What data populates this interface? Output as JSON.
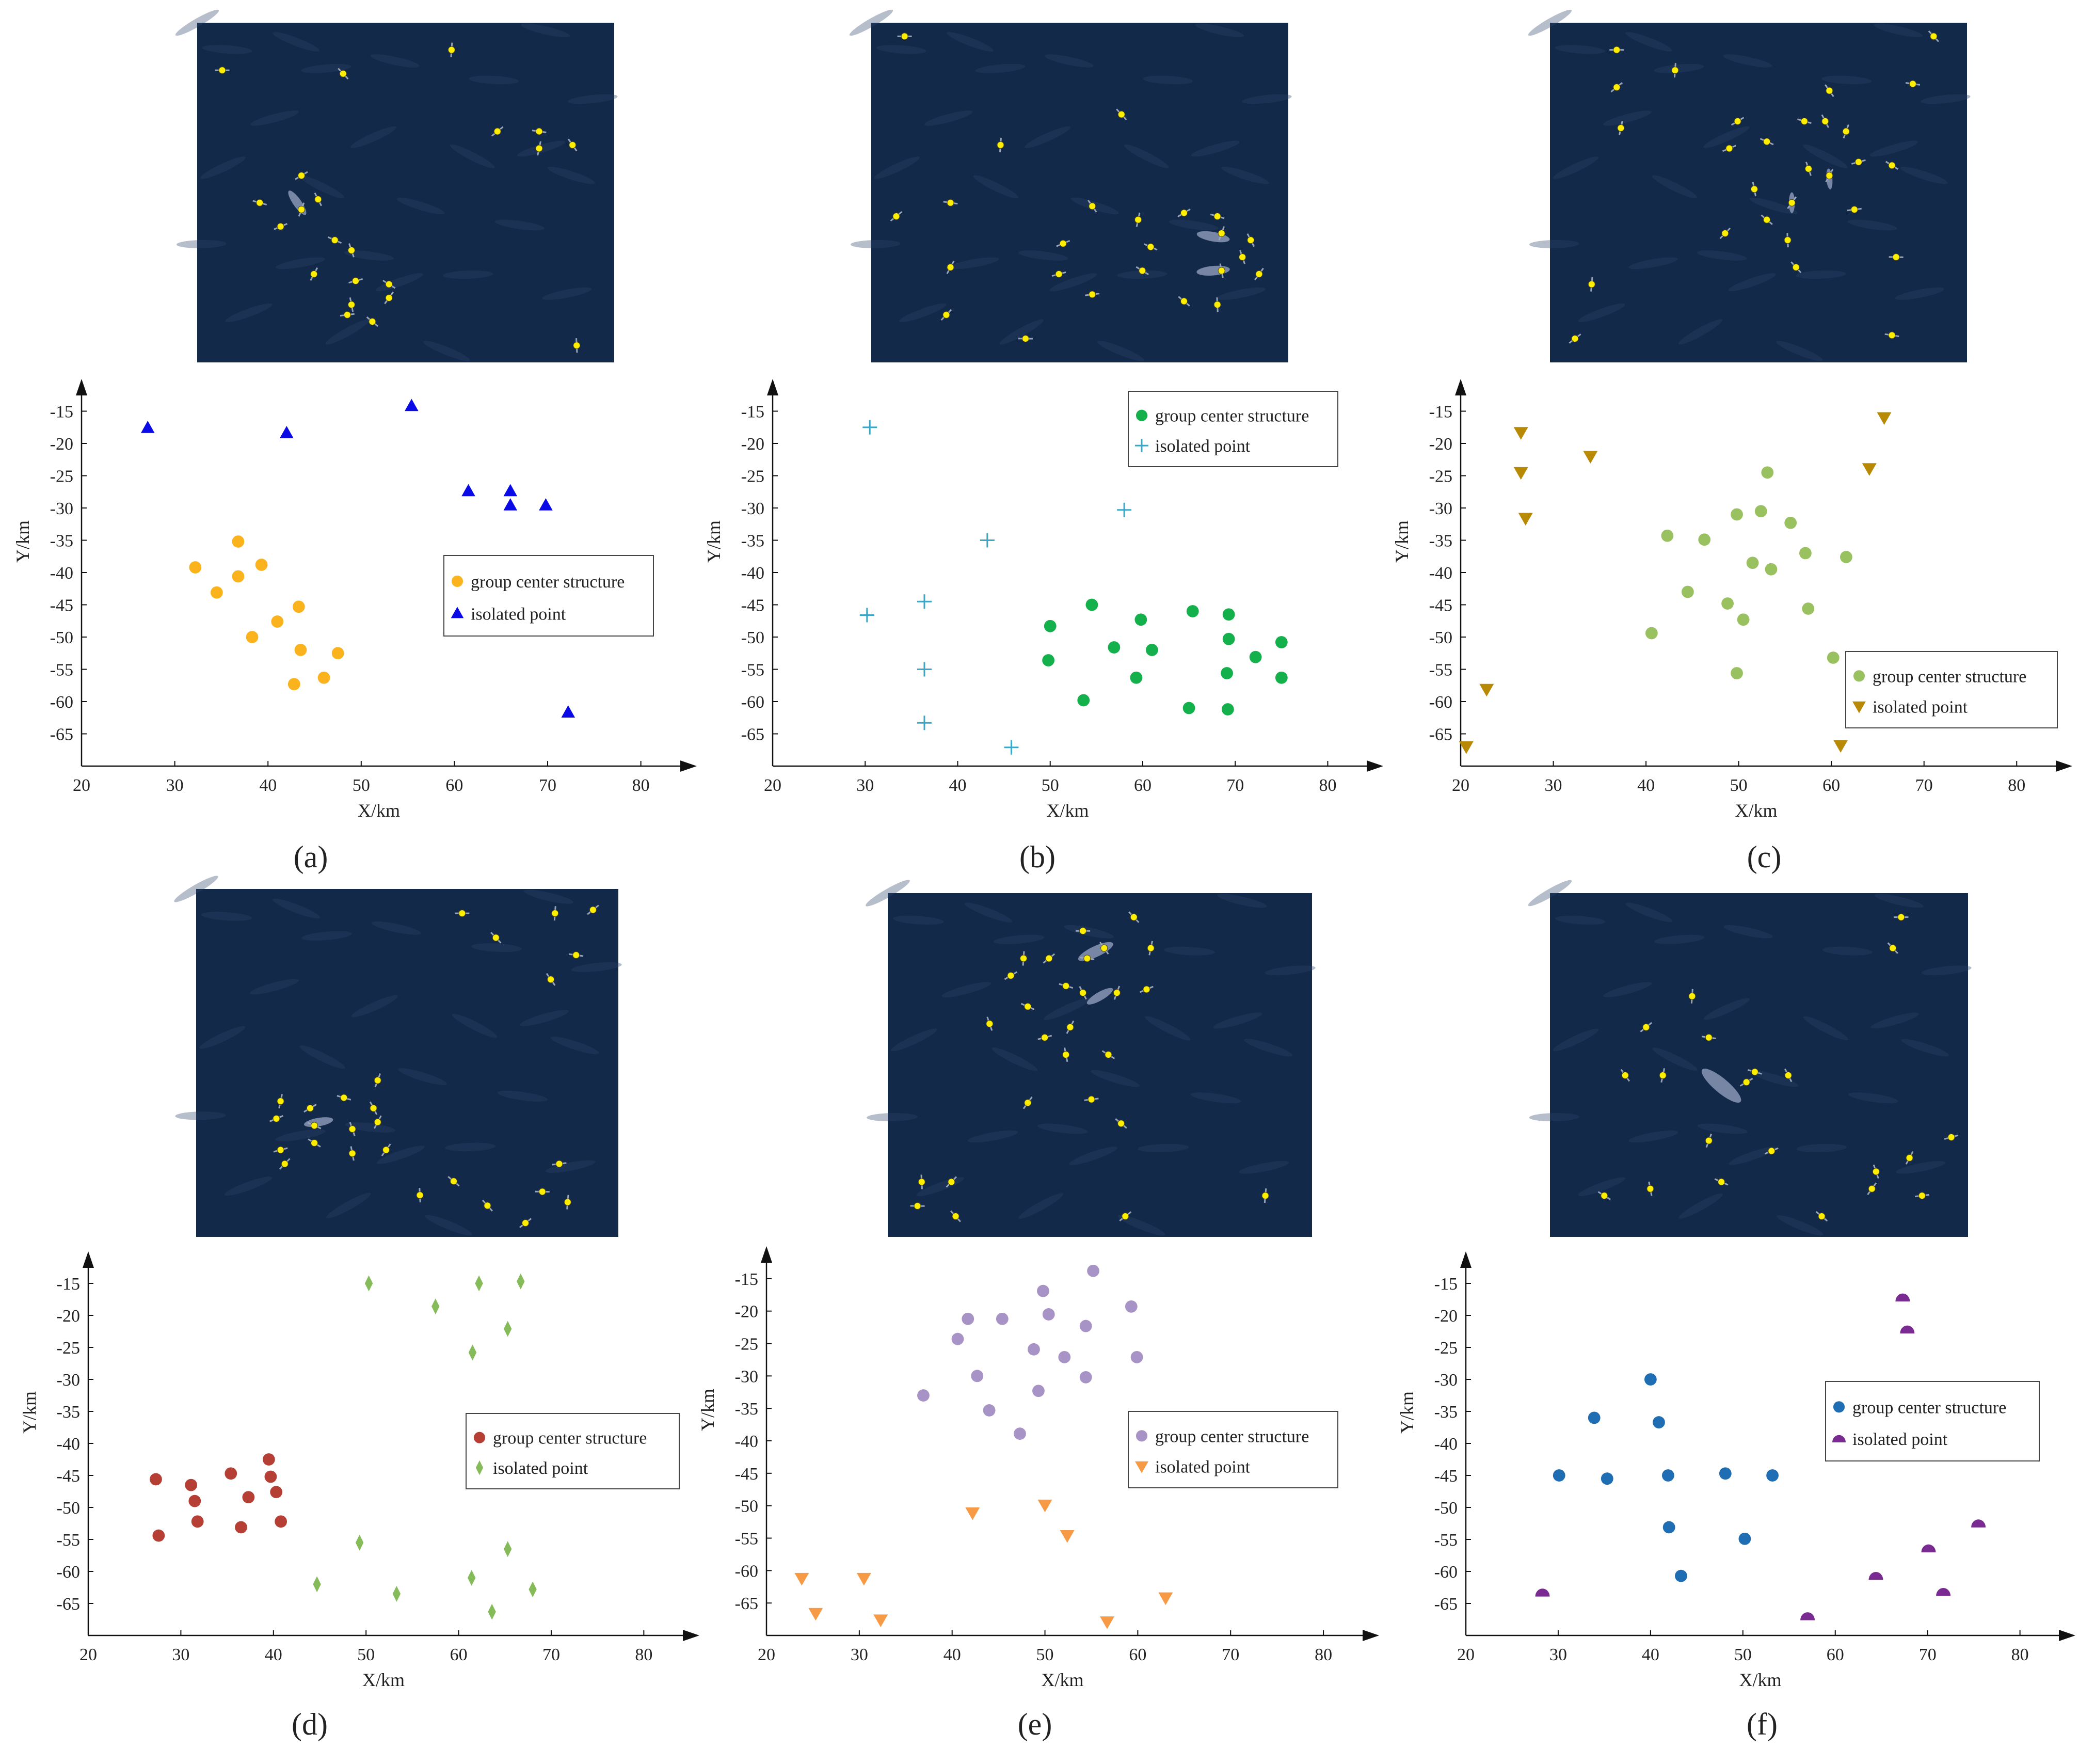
{
  "figure": {
    "panel_captions": [
      "(a)",
      "(b)",
      "(c)",
      "(d)",
      "(e)",
      "(f)"
    ]
  },
  "axes_common": {
    "xlabel": "X/km",
    "ylabel": "Y/km",
    "x_ticks": [
      20,
      30,
      40,
      50,
      60,
      70,
      80
    ],
    "y_ticks": [
      -15,
      -20,
      -25,
      -30,
      -35,
      -40,
      -45,
      -50,
      -55,
      -60,
      -65
    ],
    "xlim": [
      20,
      86
    ],
    "ylim": [
      -70,
      -10
    ]
  },
  "colors": {
    "image_background": "#13294a",
    "ship_point": "#ffee00",
    "ship_hull": "#8896b4"
  },
  "chart_data": [
    {
      "type": "scatter",
      "caption": "(a)",
      "legend_position": "center-right",
      "series": [
        {
          "name": "group center structure",
          "color": "#fbb31d",
          "marker": "circle",
          "points": [
            [
              36.8,
              -35.2
            ],
            [
              32.2,
              -39.2
            ],
            [
              39.3,
              -38.8
            ],
            [
              36.8,
              -40.6
            ],
            [
              34.5,
              -43.1
            ],
            [
              43.3,
              -45.3
            ],
            [
              41,
              -47.6
            ],
            [
              38.3,
              -50
            ],
            [
              43.5,
              -52
            ],
            [
              47.5,
              -52.5
            ],
            [
              46,
              -56.3
            ],
            [
              42.8,
              -57.3
            ]
          ]
        },
        {
          "name": "isolated point",
          "color": "#0a0ae6",
          "marker": "triangle",
          "points": [
            [
              27.1,
              -17.6
            ],
            [
              42,
              -18.4
            ],
            [
              55.4,
              -14.2
            ],
            [
              61.5,
              -27.4
            ],
            [
              66,
              -27.4
            ],
            [
              66,
              -29.6
            ],
            [
              69.8,
              -29.6
            ],
            [
              72.2,
              -61.7
            ]
          ]
        }
      ]
    },
    {
      "type": "scatter",
      "caption": "(b)",
      "legend_position": "top-right",
      "series": [
        {
          "name": "group center structure",
          "color": "#13b04b",
          "marker": "circle",
          "points": [
            [
              54.5,
              -45
            ],
            [
              50,
              -48.3
            ],
            [
              49.8,
              -53.6
            ],
            [
              59.8,
              -47.3
            ],
            [
              65.4,
              -46
            ],
            [
              69.3,
              -46.5
            ],
            [
              56.9,
              -51.6
            ],
            [
              61,
              -52
            ],
            [
              69.3,
              -50.3
            ],
            [
              75,
              -50.8
            ],
            [
              72.2,
              -53.1
            ],
            [
              59.3,
              -56.3
            ],
            [
              69.1,
              -55.6
            ],
            [
              75,
              -56.3
            ],
            [
              53.6,
              -59.8
            ],
            [
              65,
              -61
            ],
            [
              69.2,
              -61.2
            ]
          ]
        },
        {
          "name": "isolated point",
          "color": "#3ba7c6",
          "marker": "plus",
          "points": [
            [
              30.5,
              -17.5
            ],
            [
              58,
              -30.3
            ],
            [
              43.2,
              -35
            ],
            [
              36.4,
              -44.5
            ],
            [
              30.2,
              -46.6
            ],
            [
              36.4,
              -55
            ],
            [
              36.4,
              -63.3
            ],
            [
              45.8,
              -67.1
            ]
          ]
        }
      ]
    },
    {
      "type": "scatter",
      "caption": "(c)",
      "legend_position": "bottom-right",
      "series": [
        {
          "name": "group center structure",
          "color": "#99c160",
          "marker": "circle",
          "points": [
            [
              53.1,
              -24.5
            ],
            [
              49.8,
              -31
            ],
            [
              52.4,
              -30.5
            ],
            [
              55.6,
              -32.3
            ],
            [
              42.3,
              -34.3
            ],
            [
              46.3,
              -34.9
            ],
            [
              51.5,
              -38.5
            ],
            [
              53.5,
              -39.5
            ],
            [
              57.2,
              -37
            ],
            [
              61.6,
              -37.6
            ],
            [
              44.5,
              -43
            ],
            [
              48.8,
              -44.8
            ],
            [
              50.5,
              -47.3
            ],
            [
              57.5,
              -45.6
            ],
            [
              40.6,
              -49.4
            ],
            [
              60.2,
              -53.2
            ],
            [
              49.8,
              -55.6
            ]
          ]
        },
        {
          "name": "isolated point",
          "color": "#b88905",
          "marker": "triangle-down",
          "points": [
            [
              26.5,
              -18.3
            ],
            [
              26.5,
              -24.5
            ],
            [
              34,
              -22
            ],
            [
              65.7,
              -16
            ],
            [
              64.1,
              -23.9
            ],
            [
              27,
              -31.6
            ],
            [
              22.8,
              -58.1
            ],
            [
              20.6,
              -67
            ],
            [
              61,
              -66.8
            ]
          ]
        }
      ]
    },
    {
      "type": "scatter",
      "caption": "(d)",
      "legend_position": "center-right",
      "series": [
        {
          "name": "group center structure",
          "color": "#b63f35",
          "marker": "circle",
          "points": [
            [
              39.5,
              -42.5
            ],
            [
              35.4,
              -44.7
            ],
            [
              27.3,
              -45.6
            ],
            [
              31.1,
              -46.5
            ],
            [
              39.7,
              -45.2
            ],
            [
              31.5,
              -49
            ],
            [
              37.3,
              -48.4
            ],
            [
              40.3,
              -47.6
            ],
            [
              31.8,
              -52.2
            ],
            [
              36.5,
              -53.1
            ],
            [
              40.8,
              -52.2
            ],
            [
              27.6,
              -54.4
            ]
          ]
        },
        {
          "name": "isolated point",
          "color": "#86bb59",
          "marker": "diamond",
          "points": [
            [
              50.3,
              -15
            ],
            [
              62.2,
              -15
            ],
            [
              66.7,
              -14.7
            ],
            [
              57.5,
              -18.6
            ],
            [
              65.3,
              -22.1
            ],
            [
              61.5,
              -25.8
            ],
            [
              49.3,
              -55.5
            ],
            [
              65.3,
              -56.5
            ],
            [
              61.4,
              -61
            ],
            [
              44.7,
              -62
            ],
            [
              68,
              -62.8
            ],
            [
              53.3,
              -63.5
            ],
            [
              63.6,
              -66.3
            ]
          ]
        }
      ]
    },
    {
      "type": "scatter",
      "caption": "(e)",
      "legend_position": "center-right",
      "series": [
        {
          "name": "group center structure",
          "color": "#a893c6",
          "marker": "circle",
          "points": [
            [
              55.2,
              -13.8
            ],
            [
              49.8,
              -16.9
            ],
            [
              59.3,
              -19.3
            ],
            [
              50.4,
              -20.5
            ],
            [
              41.7,
              -21.2
            ],
            [
              45.4,
              -21.2
            ],
            [
              54.4,
              -22.3
            ],
            [
              40.6,
              -24.3
            ],
            [
              48.8,
              -25.9
            ],
            [
              52.1,
              -27.1
            ],
            [
              59.9,
              -27.1
            ],
            [
              42.7,
              -30
            ],
            [
              54.4,
              -30.2
            ],
            [
              49.3,
              -32.3
            ],
            [
              36.9,
              -33
            ],
            [
              44,
              -35.3
            ],
            [
              47.3,
              -38.9
            ]
          ]
        },
        {
          "name": "isolated point",
          "color": "#f69a45",
          "marker": "triangle-down",
          "points": [
            [
              50,
              -49.9
            ],
            [
              42.2,
              -51.1
            ],
            [
              52.4,
              -54.6
            ],
            [
              23.8,
              -61.2
            ],
            [
              30.5,
              -61.2
            ],
            [
              63,
              -64.2
            ],
            [
              25.3,
              -66.6
            ],
            [
              32.3,
              -67.6
            ],
            [
              56.7,
              -67.9
            ]
          ]
        }
      ]
    },
    {
      "type": "scatter",
      "caption": "(f)",
      "legend_position": "top-right",
      "series": [
        {
          "name": "group center structure",
          "color": "#1f6eb4",
          "marker": "circle",
          "points": [
            [
              40,
              -30
            ],
            [
              33.9,
              -36
            ],
            [
              40.9,
              -36.7
            ],
            [
              30.1,
              -45
            ],
            [
              35.3,
              -45.5
            ],
            [
              41.9,
              -45
            ],
            [
              48.1,
              -44.7
            ],
            [
              53.2,
              -45
            ],
            [
              42,
              -53.1
            ],
            [
              50.2,
              -54.9
            ],
            [
              43.3,
              -60.7
            ]
          ]
        },
        {
          "name": "isolated point",
          "color": "#7a2b92",
          "marker": "half-disk",
          "points": [
            [
              67.3,
              -17.2
            ],
            [
              67.8,
              -22.2
            ],
            [
              75.5,
              -52.5
            ],
            [
              70.1,
              -56.4
            ],
            [
              64.4,
              -60.7
            ],
            [
              71.7,
              -63.2
            ],
            [
              28.3,
              -63.3
            ],
            [
              57,
              -67
            ]
          ]
        }
      ]
    }
  ]
}
